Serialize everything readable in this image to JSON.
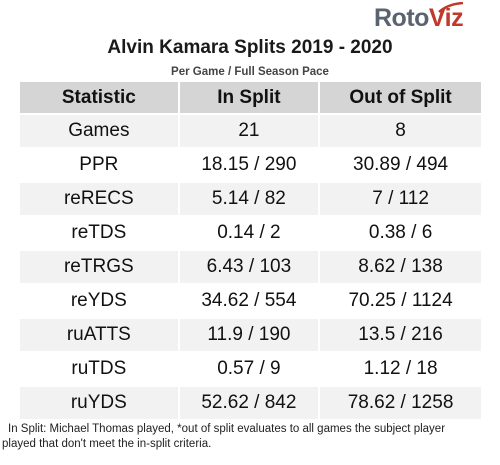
{
  "logo": {
    "text_part1": "Roto",
    "text_part2": "Viz",
    "colors": {
      "primary": "#5a6370",
      "accent": "#c0392b"
    }
  },
  "title": "Alvin Kamara Splits 2019 - 2020",
  "subtitle": "Per Game / Full Season Pace",
  "table": {
    "headers": [
      "Statistic",
      "In Split",
      "Out of Split"
    ],
    "rows": [
      [
        "Games",
        "21",
        "8"
      ],
      [
        "PPR",
        "18.15 / 290",
        "30.89 / 494"
      ],
      [
        "reRECS",
        "5.14 / 82",
        "7 / 112"
      ],
      [
        "reTDS",
        "0.14 / 2",
        "0.38 / 6"
      ],
      [
        "reTRGS",
        "6.43 / 103",
        "8.62 / 138"
      ],
      [
        "reYDS",
        "34.62 / 554",
        "70.25 / 1124"
      ],
      [
        "ruATTS",
        "11.9 / 190",
        "13.5 / 216"
      ],
      [
        "ruTDS",
        "0.57 / 9",
        "1.12 / 18"
      ],
      [
        "ruYDS",
        "52.62 / 842",
        "78.62 / 1258"
      ]
    ],
    "colors": {
      "header_bg": "#d5d5d5",
      "stripe_bg": "#f2f2f2"
    }
  },
  "footnote": {
    "line1": "In Split: Michael Thomas played,  *out of split evaluates to all games the subject player",
    "line2": "played that don't meet the in-split criteria."
  }
}
